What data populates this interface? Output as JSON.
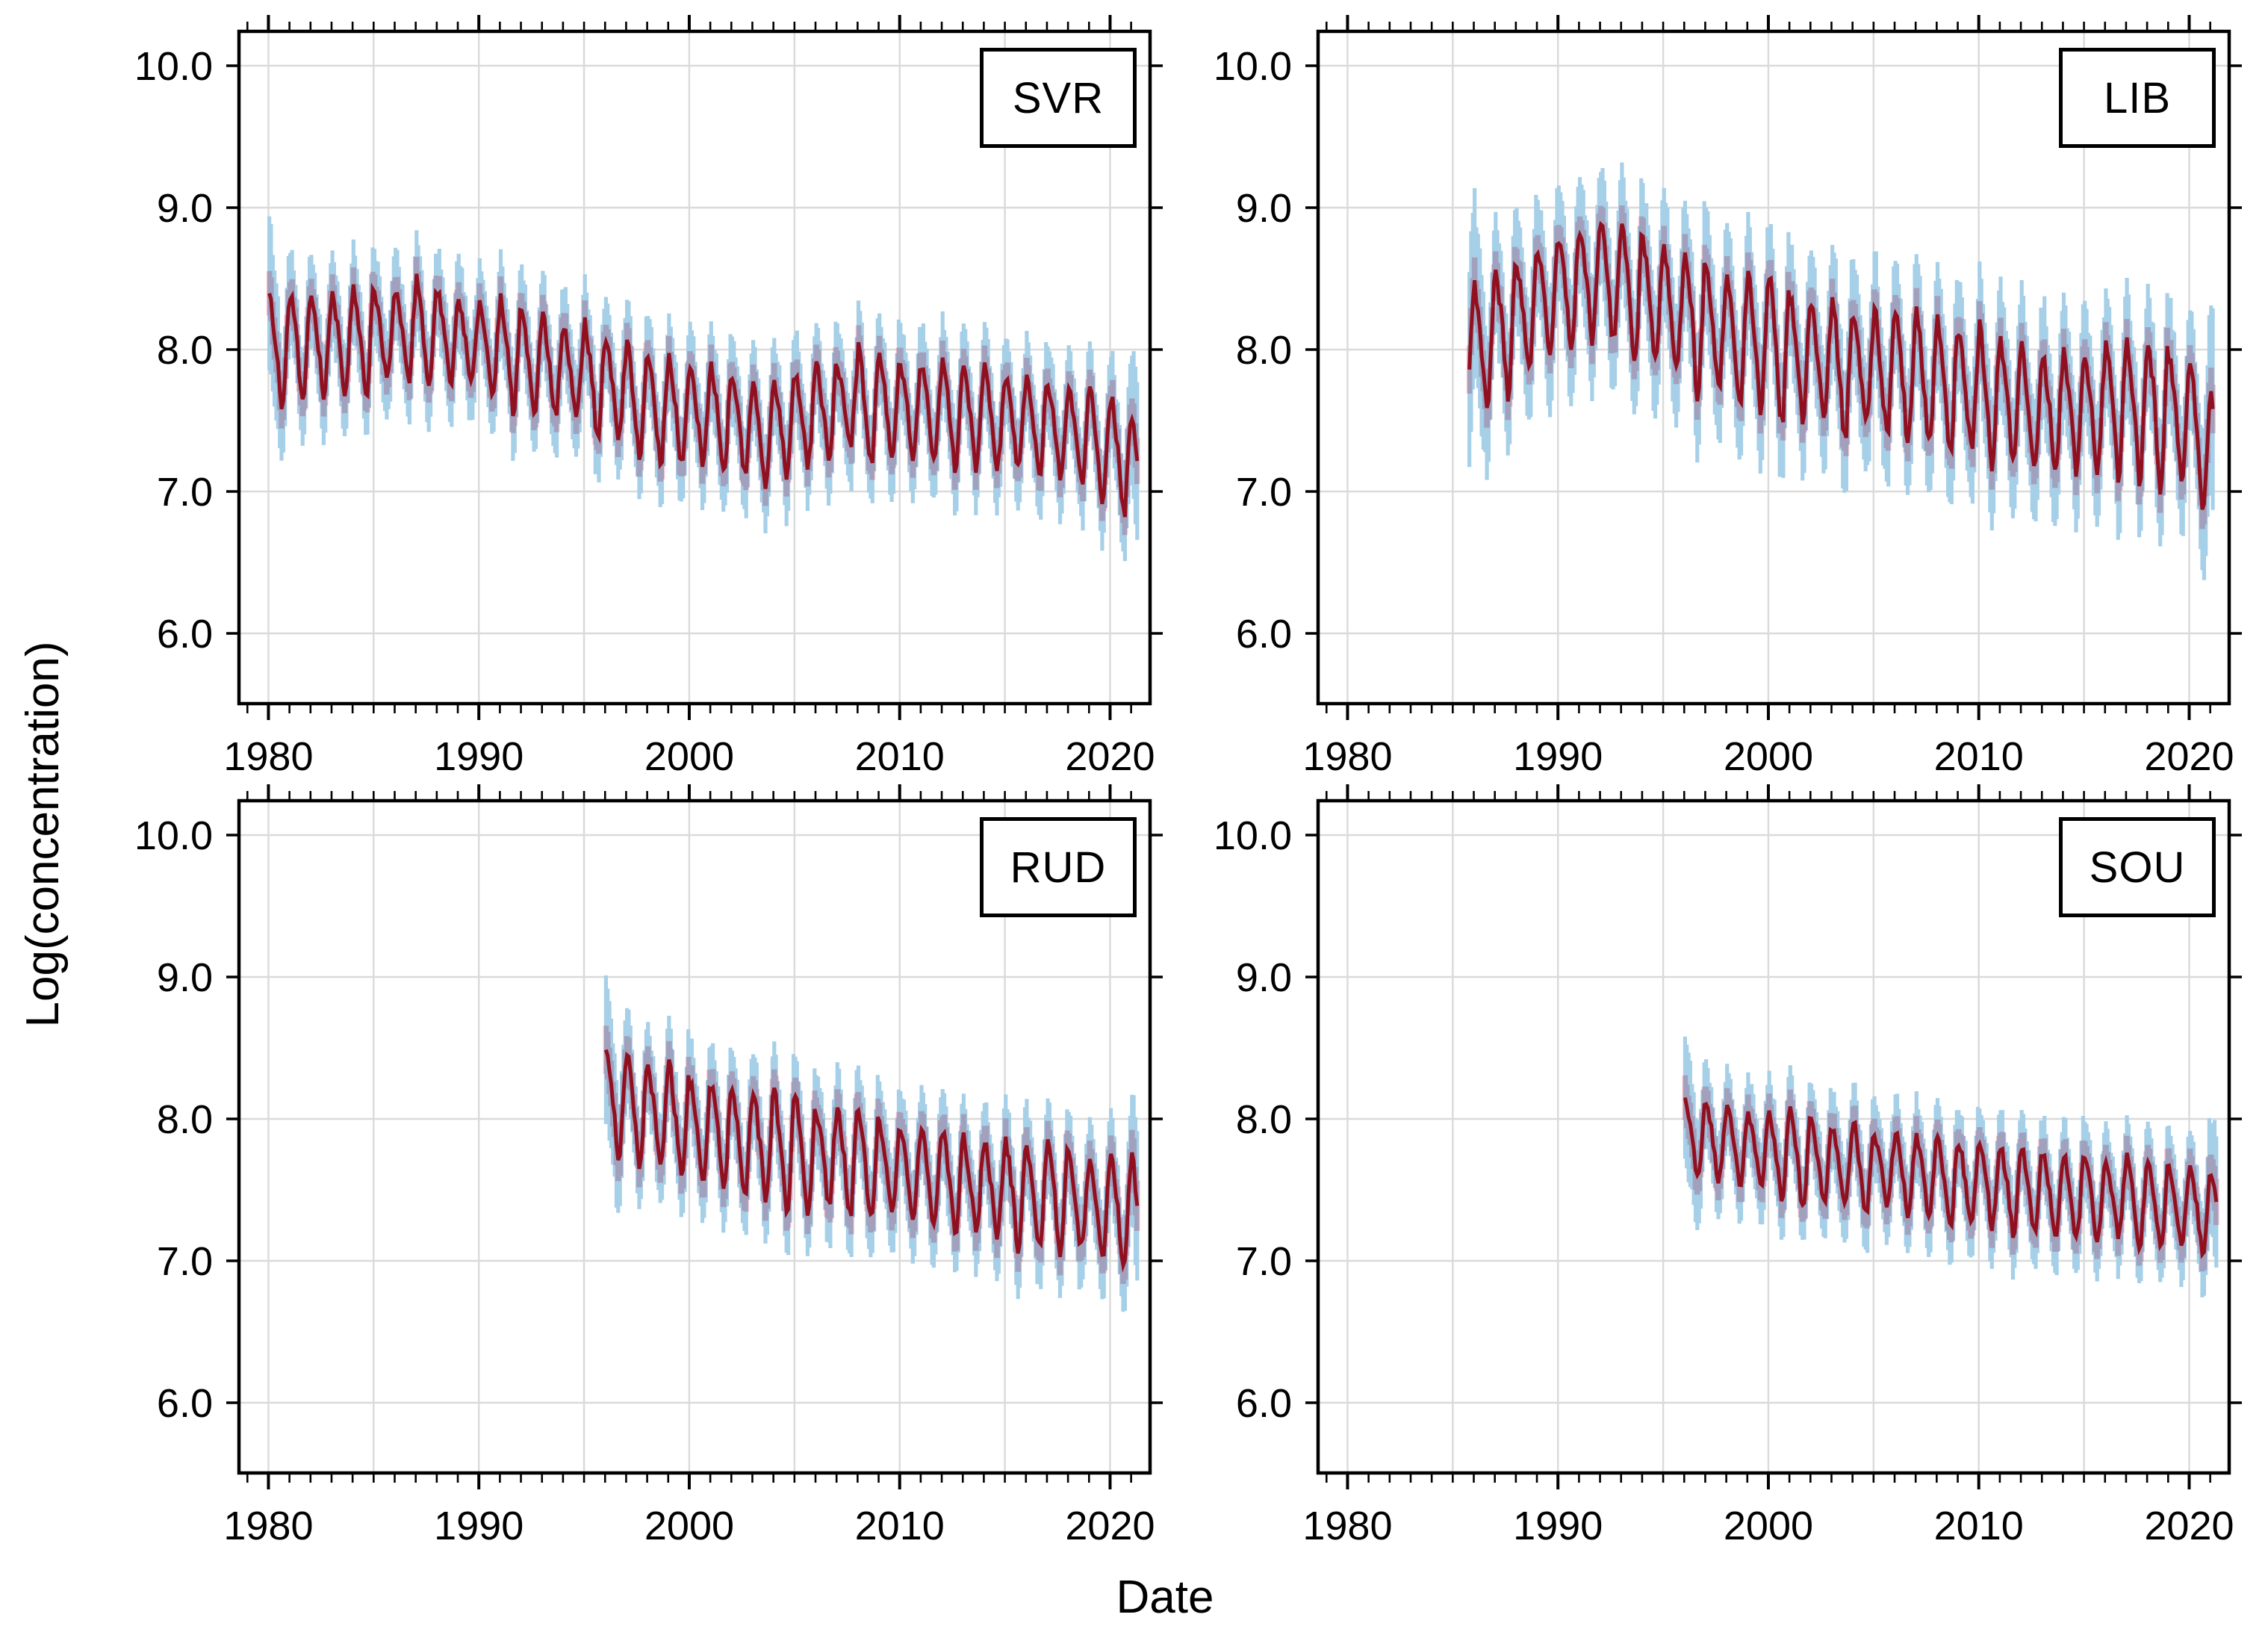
{
  "titles": {
    "y": "Log(concentration)",
    "x": "Date"
  },
  "colors": {
    "background": "#ffffff",
    "axis": "#000000",
    "text": "#000000",
    "grid": "#dadada",
    "median_red": "#e3192b",
    "ci50_pink": "#f9c6d0",
    "ci95_blue": "#a6cfe8"
  },
  "axes": {
    "x_domain": [
      1978.6,
      2021.9
    ],
    "x_major_ticks": [
      1980,
      1990,
      2000,
      2010,
      2020
    ],
    "x_major_tick_labels": [
      "1980",
      "1990",
      "2000",
      "2010",
      "2020"
    ],
    "x_minor_tick_step_years": 1,
    "x_gridline_step_years": 5,
    "x_gridlines": [
      1980,
      1985,
      1990,
      1995,
      2000,
      2005,
      2010,
      2015,
      2020
    ],
    "y_domain": [
      5.53,
      10.24
    ],
    "y_major_ticks": [
      6,
      7,
      8,
      9,
      10
    ],
    "y_major_tick_labels": [
      "6.0",
      "7.0",
      "8.0",
      "9.0",
      "10.0"
    ],
    "grid": true,
    "legend": "none"
  },
  "chart_data": [
    {
      "type": "line",
      "label": "SVR",
      "description": "Monthly median log-concentration (red) with 50% CI (pink) and 95% CI (light blue) vertical bars; strong annual seasonality.",
      "start_decimal_year": 1980.0,
      "end_decimal_year": 2021.3,
      "trend_years": [
        1980,
        1981,
        1982,
        1983,
        1984,
        1985,
        1986,
        1987,
        1988,
        1989,
        1990,
        1991,
        1992,
        1993,
        1994,
        1995,
        1996,
        1997,
        1998,
        1999,
        2000,
        2001,
        2002,
        2003,
        2004,
        2005,
        2006,
        2007,
        2008,
        2009,
        2010,
        2011,
        2012,
        2013,
        2014,
        2015,
        2016,
        2017,
        2018,
        2019,
        2020,
        2021
      ],
      "trend_values": [
        8.0,
        8.02,
        8.04,
        8.06,
        8.08,
        8.1,
        8.12,
        8.12,
        8.1,
        8.06,
        8.02,
        7.97,
        7.92,
        7.88,
        7.84,
        7.8,
        7.72,
        7.65,
        7.6,
        7.57,
        7.55,
        7.52,
        7.48,
        7.42,
        7.45,
        7.52,
        7.58,
        7.62,
        7.62,
        7.6,
        7.58,
        7.57,
        7.55,
        7.53,
        7.52,
        7.5,
        7.47,
        7.44,
        7.4,
        7.35,
        7.28,
        7.05
      ],
      "seasonal_amplitude": 0.32,
      "ci50_halfwidth": 0.12,
      "ci95_halfwidth": 0.3,
      "seed": 11
    },
    {
      "type": "line",
      "label": "LIB",
      "description": "Rises from 1986 to a peak around 1991 (median ~8.9, 95% CI up to ~9.4) then declines, with a sharp drop to ~7.0 at the 2021 end.",
      "start_decimal_year": 1985.75,
      "end_decimal_year": 2021.2,
      "trend_years": [
        1986,
        1987,
        1988,
        1989,
        1990,
        1991,
        1992,
        1993,
        1994,
        1995,
        1996,
        1997,
        1998,
        1999,
        2000,
        2001,
        2002,
        2003,
        2004,
        2005,
        2006,
        2007,
        2008,
        2009,
        2010,
        2011,
        2012,
        2013,
        2014,
        2015,
        2016,
        2017,
        2018,
        2019,
        2020,
        2021
      ],
      "trend_values": [
        8.02,
        8.15,
        8.28,
        8.38,
        8.45,
        8.49,
        8.48,
        8.42,
        8.35,
        8.28,
        8.22,
        8.16,
        8.1,
        8.06,
        8.02,
        7.97,
        7.92,
        7.88,
        7.86,
        7.84,
        7.82,
        7.79,
        7.76,
        7.72,
        7.68,
        7.64,
        7.6,
        7.57,
        7.56,
        7.57,
        7.6,
        7.62,
        7.6,
        7.53,
        7.42,
        6.95
      ],
      "seasonal_amplitude": 0.42,
      "ci50_halfwidth": 0.13,
      "ci95_halfwidth": 0.4,
      "seed": 23
    },
    {
      "type": "line",
      "label": "RUD",
      "description": "Starts 1996 near 8.1 and declines steadily to ~7.3 by 2021.",
      "start_decimal_year": 1996.0,
      "end_decimal_year": 2021.3,
      "trend_years": [
        1996,
        1997,
        1998,
        1999,
        2000,
        2001,
        2002,
        2003,
        2004,
        2005,
        2006,
        2007,
        2008,
        2009,
        2010,
        2011,
        2012,
        2013,
        2014,
        2015,
        2016,
        2017,
        2018,
        2019,
        2020,
        2021
      ],
      "trend_values": [
        8.12,
        8.08,
        8.03,
        7.98,
        7.93,
        7.89,
        7.85,
        7.81,
        7.78,
        7.76,
        7.74,
        7.72,
        7.69,
        7.66,
        7.63,
        7.6,
        7.57,
        7.54,
        7.51,
        7.48,
        7.46,
        7.44,
        7.42,
        7.4,
        7.37,
        7.3
      ],
      "seasonal_amplitude": 0.33,
      "ci50_halfwidth": 0.13,
      "ci95_halfwidth": 0.3,
      "seed": 37
    },
    {
      "type": "line",
      "label": "SOU",
      "description": "Starts 1996 near 7.9 and declines gently to ~7.3 by 2021.",
      "start_decimal_year": 1996.0,
      "end_decimal_year": 2021.3,
      "trend_years": [
        1996,
        1997,
        1998,
        1999,
        2000,
        2001,
        2002,
        2003,
        2004,
        2005,
        2006,
        2007,
        2008,
        2009,
        2010,
        2011,
        2012,
        2013,
        2014,
        2015,
        2016,
        2017,
        2018,
        2019,
        2020,
        2021
      ],
      "trend_values": [
        7.88,
        7.85,
        7.82,
        7.79,
        7.76,
        7.73,
        7.71,
        7.68,
        7.66,
        7.64,
        7.62,
        7.6,
        7.58,
        7.56,
        7.54,
        7.52,
        7.5,
        7.48,
        7.47,
        7.45,
        7.44,
        7.42,
        7.41,
        7.39,
        7.37,
        7.32
      ],
      "seasonal_amplitude": 0.27,
      "ci50_halfwidth": 0.12,
      "ci95_halfwidth": 0.27,
      "seed": 51
    }
  ]
}
